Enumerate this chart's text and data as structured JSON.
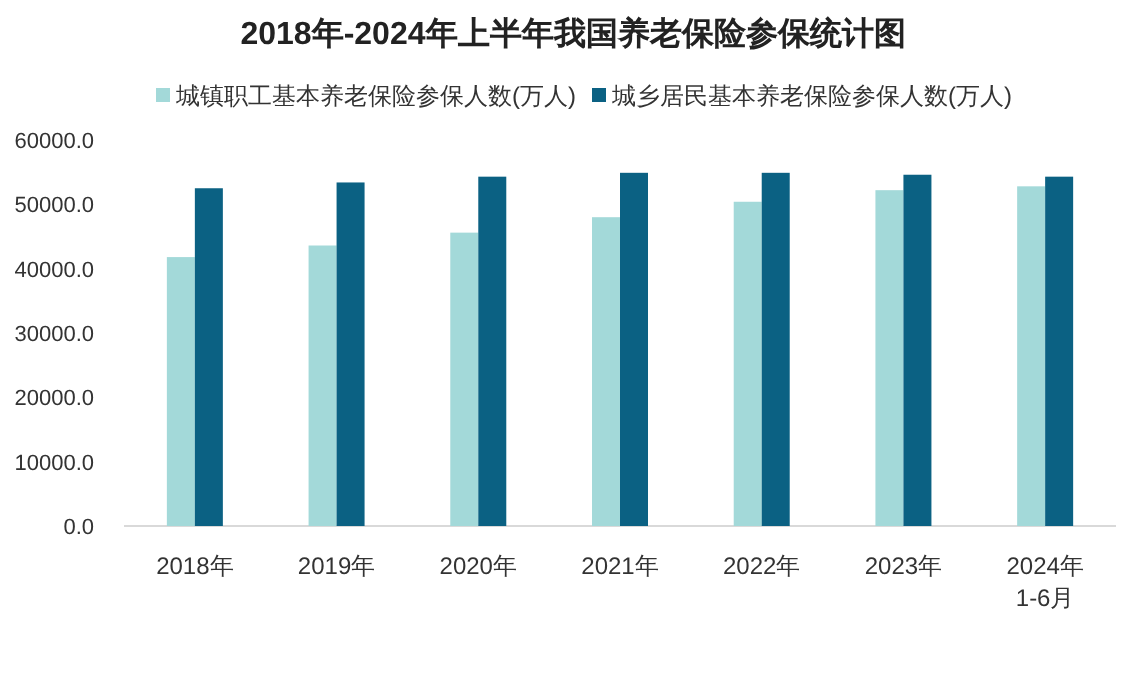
{
  "chart_data": {
    "type": "bar",
    "title": "2018年-2024年上半年我国养老保险参保统计图",
    "categories": [
      "2018年",
      "2019年",
      "2020年",
      "2021年",
      "2022年",
      "2023年",
      "2024年\n1-6月"
    ],
    "series": [
      {
        "name": "城镇职工基本养老保险参保人数(万人)",
        "color": "#a3d9d9",
        "values": [
          41800,
          43600,
          45600,
          48000,
          50400,
          52200,
          52800
        ]
      },
      {
        "name": "城乡居民基本养老保险参保人数(万人)",
        "color": "#0b6183",
        "values": [
          52500,
          53400,
          54300,
          54900,
          54900,
          54600,
          54300
        ]
      }
    ],
    "ylim": [
      0,
      60000
    ],
    "yticks": [
      {
        "value": 0,
        "label": "0.0"
      },
      {
        "value": 10000,
        "label": "10000.0"
      },
      {
        "value": 20000,
        "label": "20000.0"
      },
      {
        "value": 30000,
        "label": "30000.0"
      },
      {
        "value": 40000,
        "label": "40000.0"
      },
      {
        "value": 50000,
        "label": "50000.0"
      },
      {
        "value": 60000,
        "label": "60000.0"
      }
    ],
    "grid": false,
    "legend": "top"
  }
}
